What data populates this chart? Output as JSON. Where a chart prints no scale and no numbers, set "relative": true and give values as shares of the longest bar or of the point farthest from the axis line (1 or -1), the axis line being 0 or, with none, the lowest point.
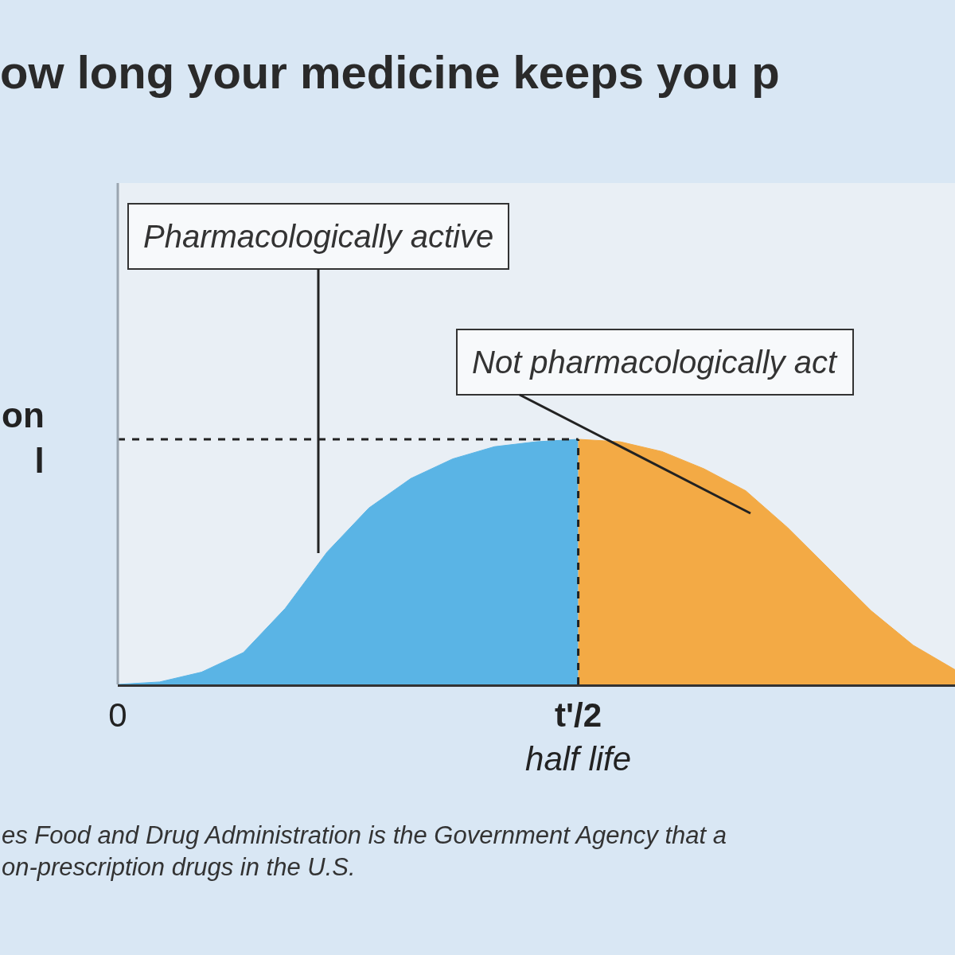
{
  "chart_data": {
    "type": "area",
    "title": "ow long your medicine keeps you p",
    "ylabel": "on\nl",
    "relative": true,
    "categories": [
      "0",
      null,
      null,
      null,
      null,
      null,
      null,
      null,
      null,
      null,
      null,
      "t'/2\nhalf life",
      null,
      null,
      null,
      null,
      null,
      null,
      null,
      null,
      null
    ],
    "series": [
      {
        "color": "#5ab4e5",
        "values": [
          0,
          0.01,
          0.05,
          0.13,
          0.31,
          0.54,
          0.72,
          0.84,
          0.92,
          0.97,
          0.99,
          1,
          null,
          null,
          null,
          null,
          null,
          null,
          null,
          null,
          null
        ]
      },
      {
        "color": "#f3aa45",
        "values": [
          null,
          null,
          null,
          null,
          null,
          null,
          null,
          null,
          null,
          null,
          null,
          1,
          0.99,
          0.95,
          0.88,
          0.79,
          0.64,
          0.47,
          0.3,
          0.16,
          0.06
        ]
      }
    ],
    "ref_lines": [
      {
        "axis": "y",
        "value": 1,
        "line_style": "dashed",
        "color": "#222222"
      },
      {
        "axis": "x",
        "value": "t'/2\nhalf life",
        "line_style": "dashed",
        "color": "#222222"
      }
    ],
    "annotations": [
      "Pharmacologically active",
      "Not pharmacologically act",
      "es Food and Drug Administration is the Government Agency that a\non-prescription drugs in the U.S."
    ],
    "grid": false
  }
}
